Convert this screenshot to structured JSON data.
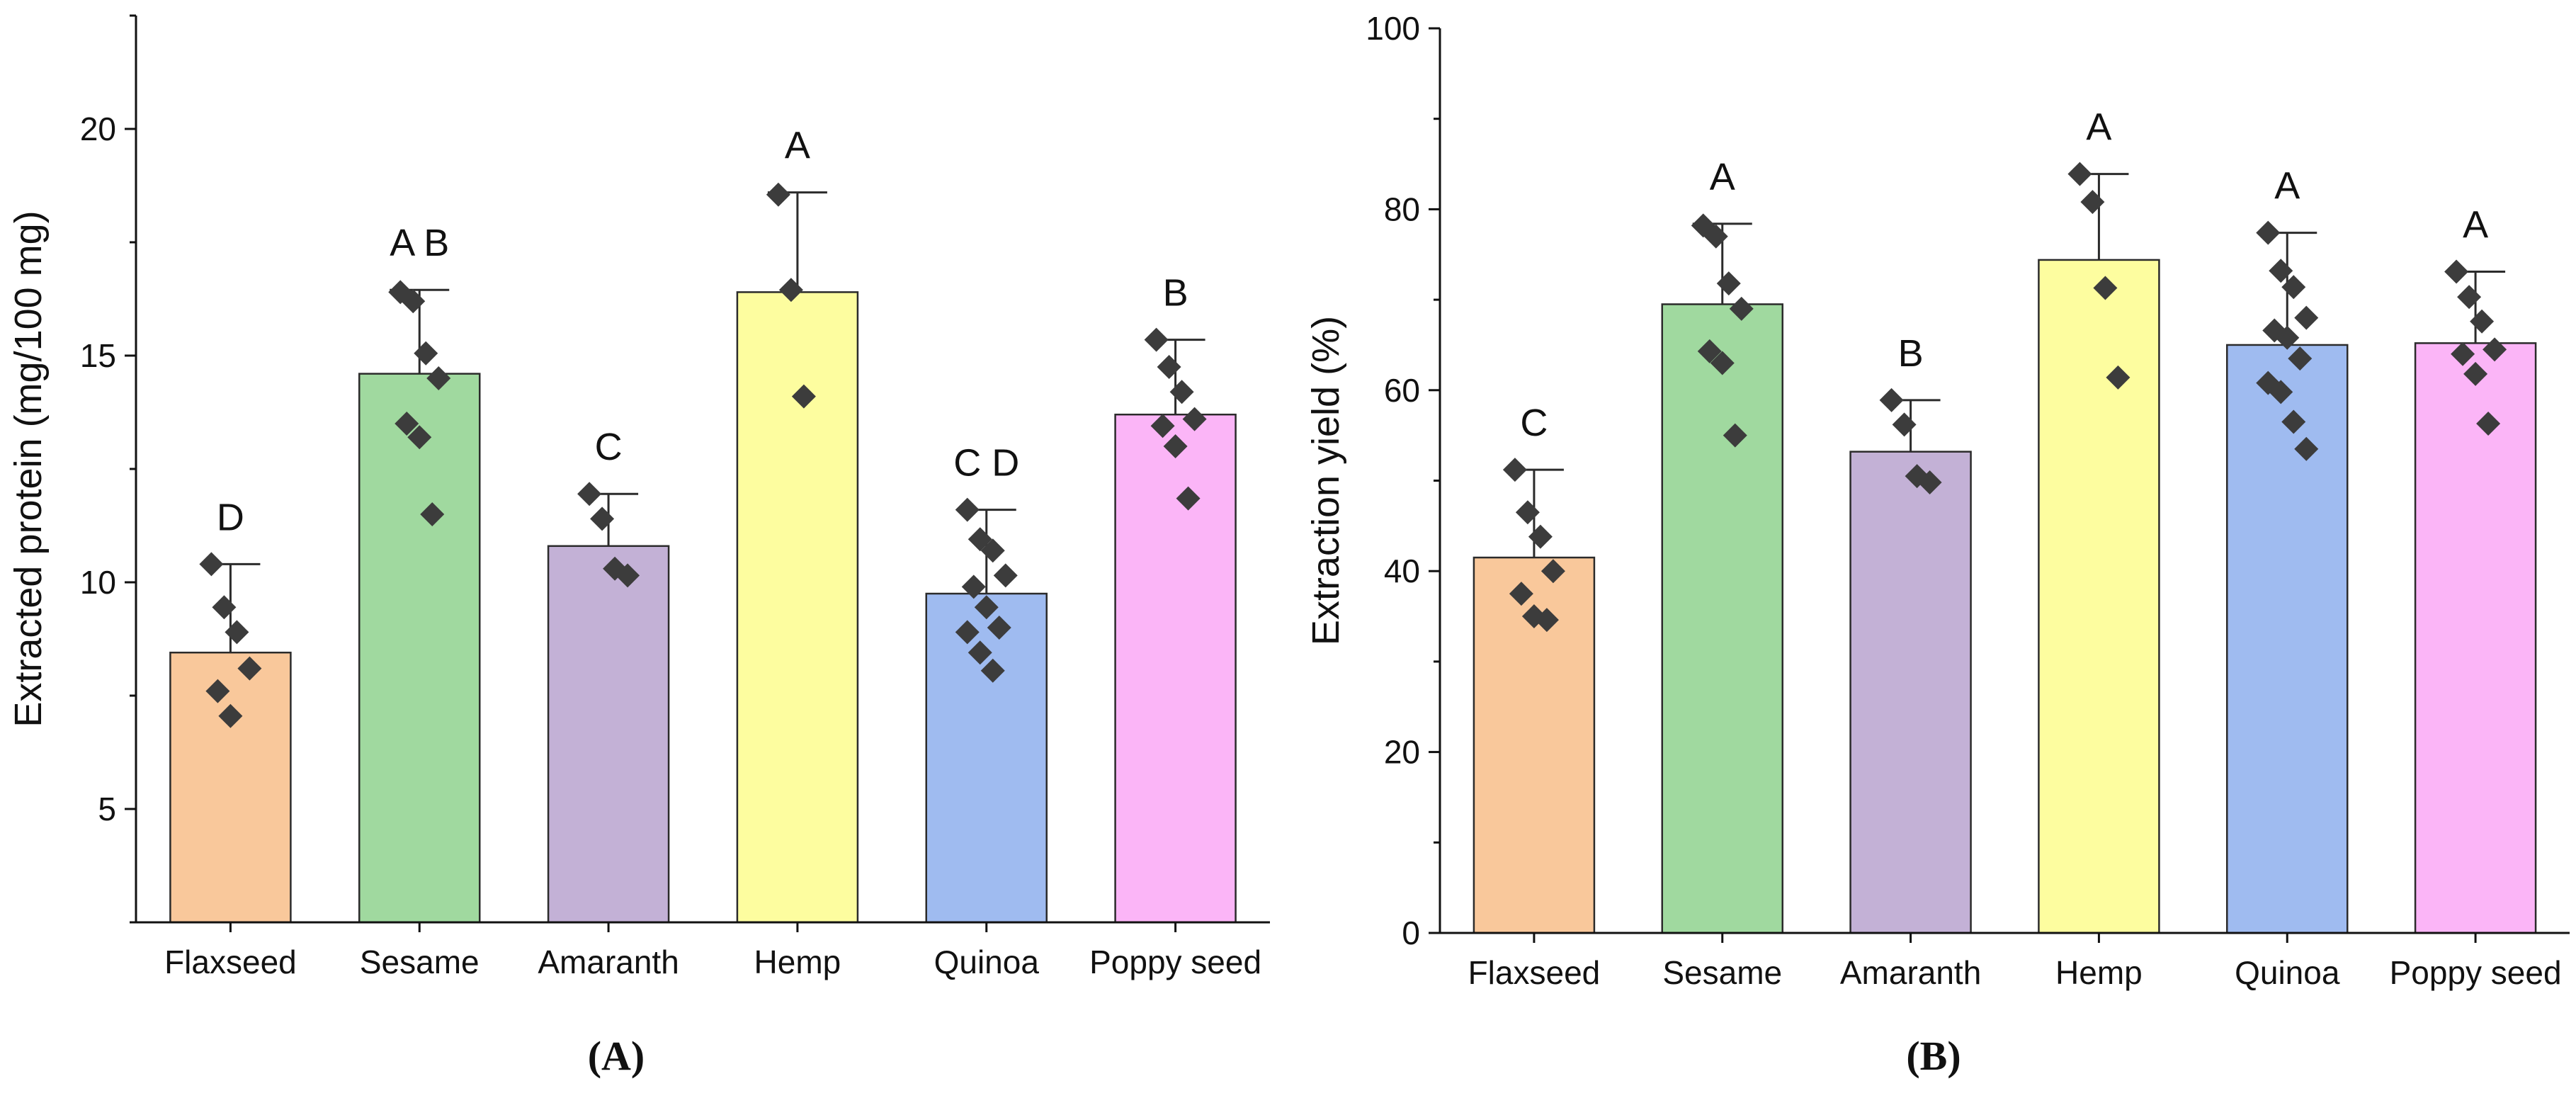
{
  "chart_data": [
    {
      "type": "bar",
      "panel_label": "(A)",
      "ylabel": "Extracted protein (mg/100 mg)",
      "xlabel": "",
      "ylim": [
        2.5,
        22.5
      ],
      "yticks": [
        5,
        10,
        15,
        20
      ],
      "grid": false,
      "categories": [
        "Flaxseed",
        "Sesame",
        "Amaranth",
        "Hemp",
        "Quinoa",
        "Poppy seed"
      ],
      "values": [
        8.45,
        14.6,
        10.8,
        16.4,
        9.75,
        13.7
      ],
      "error_upper": [
        10.4,
        16.45,
        11.95,
        18.6,
        11.6,
        15.35
      ],
      "letters": [
        "D",
        "A B",
        "C",
        "A",
        "C D",
        "B"
      ],
      "points": [
        [
          10.4,
          9.45,
          8.9,
          8.1,
          7.6,
          7.05
        ],
        [
          16.4,
          16.2,
          15.05,
          14.5,
          13.5,
          13.2,
          11.5
        ],
        [
          11.95,
          11.4,
          10.3,
          10.15
        ],
        [
          18.55,
          16.45,
          14.1
        ],
        [
          11.6,
          10.95,
          10.7,
          10.15,
          9.9,
          9.45,
          9.0,
          8.9,
          8.45,
          8.05
        ],
        [
          15.35,
          14.75,
          14.2,
          13.6,
          13.45,
          13.0,
          11.85
        ]
      ],
      "colors": [
        "#f9c89b",
        "#a0d99f",
        "#c3b1d6",
        "#fdfd9f",
        "#9fbbf0",
        "#fbb5f7"
      ]
    },
    {
      "type": "bar",
      "panel_label": "(B)",
      "ylabel": "Extraction yield (%)",
      "xlabel": "",
      "ylim": [
        0,
        100
      ],
      "yticks": [
        0,
        20,
        40,
        60,
        80,
        100
      ],
      "grid": false,
      "categories": [
        "Flaxseed",
        "Sesame",
        "Amaranth",
        "Hemp",
        "Quinoa",
        "Poppy seed"
      ],
      "values": [
        41.5,
        69.5,
        53.2,
        74.4,
        65.0,
        65.2
      ],
      "error_upper": [
        51.2,
        78.4,
        58.9,
        83.9,
        77.4,
        73.1
      ],
      "letters": [
        "C",
        "A",
        "B",
        "A",
        "A",
        "A"
      ],
      "points": [
        [
          51.2,
          46.5,
          43.8,
          40.0,
          37.5,
          35.0,
          34.6
        ],
        [
          78.2,
          77.0,
          71.8,
          69.0,
          64.3,
          63.0,
          55.0
        ],
        [
          58.9,
          56.2,
          50.5,
          49.8
        ],
        [
          83.9,
          80.8,
          71.3,
          61.4
        ],
        [
          77.4,
          73.2,
          71.4,
          68.0,
          66.6,
          65.8,
          63.5,
          60.8,
          59.8,
          56.5,
          53.5
        ],
        [
          73.1,
          70.3,
          67.6,
          64.5,
          64.0,
          61.8,
          56.3
        ]
      ],
      "colors": [
        "#f9c89b",
        "#a0d99f",
        "#c3b1d6",
        "#fdfd9f",
        "#9fbbf0",
        "#fbb5f7"
      ]
    }
  ]
}
